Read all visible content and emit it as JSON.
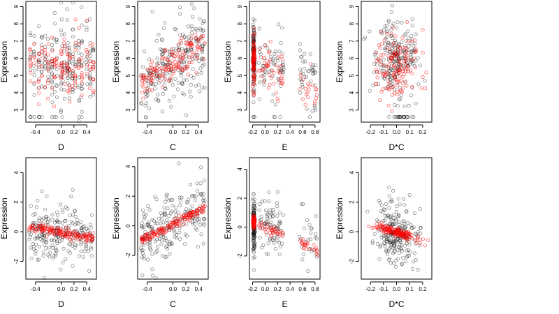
{
  "colors": {
    "black_series": "#000000",
    "red_series": "#ff0000"
  },
  "chart_data": [
    {
      "id": "p11",
      "type": "scatter",
      "xlabel": "D",
      "ylabel": "Expression",
      "xlim": [
        -0.55,
        0.55
      ],
      "ylim": [
        2.3,
        9.3
      ],
      "xticks": [
        -0.4,
        0.0,
        0.2,
        0.4
      ],
      "yticks": [
        3,
        4,
        5,
        6,
        7,
        8,
        9
      ],
      "series": [
        {
          "color": "black",
          "opacity": 0.45,
          "x_values": [
            -0.48,
            -0.42,
            -0.35,
            -0.3,
            -0.25,
            -0.2,
            -0.14,
            -0.1,
            -0.07,
            0.0,
            0.02,
            0.05,
            0.1,
            0.13,
            0.18,
            0.22,
            0.28,
            0.32,
            0.4,
            0.45,
            0.5
          ],
          "y_range": [
            2.6,
            8.4
          ],
          "count": 230
        },
        {
          "color": "red",
          "opacity": 0.6,
          "x_values": [
            -0.48,
            -0.42,
            -0.35,
            -0.3,
            -0.25,
            -0.2,
            -0.14,
            -0.1,
            -0.07,
            0.0,
            0.02,
            0.05,
            0.1,
            0.13,
            0.18,
            0.22,
            0.28,
            0.32,
            0.4,
            0.45,
            0.5
          ],
          "y_range": [
            2.8,
            7.5
          ],
          "count": 150
        }
      ]
    },
    {
      "id": "p12",
      "type": "scatter",
      "xlabel": "C",
      "ylabel": "Expression",
      "xlim": [
        -0.55,
        0.55
      ],
      "ylim": [
        2.3,
        9.3
      ],
      "xticks": [
        -0.4,
        0.0,
        0.2,
        0.4
      ],
      "yticks": [
        3,
        4,
        5,
        6,
        7,
        8,
        9
      ],
      "series": [
        {
          "color": "black",
          "opacity": 0.45,
          "trend": [
            [
              -0.5,
              4.5
            ],
            [
              0.5,
              6.8
            ]
          ],
          "spread": 1.2,
          "count": 230
        },
        {
          "color": "red",
          "opacity": 0.6,
          "trend": [
            [
              -0.5,
              4.5
            ],
            [
              0.5,
              6.8
            ]
          ],
          "spread": 0.5,
          "count": 150
        }
      ]
    },
    {
      "id": "p13",
      "type": "scatter",
      "xlabel": "E",
      "ylabel": "Expression",
      "xlim": [
        -0.25,
        0.88
      ],
      "ylim": [
        2.3,
        9.3
      ],
      "xticks": [
        -0.2,
        0.0,
        0.2,
        0.4,
        0.6,
        0.8
      ],
      "yticks": [
        3,
        4,
        5,
        6,
        7,
        8,
        9
      ],
      "series": [
        {
          "color": "black",
          "opacity": 0.45,
          "count": 230
        },
        {
          "color": "red",
          "opacity": 0.6,
          "count": 150
        }
      ]
    },
    {
      "id": "p14",
      "type": "scatter",
      "xlabel": "D*C",
      "ylabel": "Expression",
      "xlim": [
        -0.27,
        0.27
      ],
      "ylim": [
        2.3,
        9.3
      ],
      "xticks": [
        -0.2,
        -0.1,
        0.0,
        0.1,
        0.2
      ],
      "yticks": [
        3,
        4,
        5,
        6,
        7,
        8,
        9
      ],
      "series": [
        {
          "color": "black",
          "opacity": 0.45,
          "count": 230
        },
        {
          "color": "red",
          "opacity": 0.6,
          "count": 150
        }
      ]
    },
    {
      "id": "p21",
      "type": "scatter",
      "xlabel": "D",
      "ylabel": "Expression",
      "xlim": [
        -0.55,
        0.55
      ],
      "ylim": [
        -3.2,
        5.0
      ],
      "xticks": [
        -0.4,
        0.0,
        0.2,
        0.4
      ],
      "yticks": [
        -2,
        0,
        2,
        4
      ],
      "series": [
        {
          "color": "black",
          "opacity": 0.45,
          "count": 230
        },
        {
          "color": "red",
          "opacity": 0.6,
          "trend": [
            [
              -0.5,
              0.3
            ],
            [
              0.5,
              -0.4
            ]
          ],
          "spread": 0.15,
          "count": 150
        }
      ]
    },
    {
      "id": "p22",
      "type": "scatter",
      "xlabel": "C",
      "ylabel": "Expression",
      "xlim": [
        -0.55,
        0.55
      ],
      "ylim": [
        -3.6,
        4.6
      ],
      "xticks": [
        -0.4,
        0.0,
        0.2,
        0.4
      ],
      "yticks": [
        -2,
        0,
        2,
        4
      ],
      "series": [
        {
          "color": "black",
          "opacity": 0.45,
          "trend": [
            [
              -0.5,
              -1.0
            ],
            [
              0.5,
              1.2
            ]
          ],
          "spread": 1.1,
          "count": 230
        },
        {
          "color": "red",
          "opacity": 0.6,
          "trend": [
            [
              -0.5,
              -1.0
            ],
            [
              0.5,
              1.2
            ]
          ],
          "spread": 0.15,
          "count": 150
        }
      ]
    },
    {
      "id": "p23",
      "type": "scatter",
      "xlabel": "E",
      "ylabel": "Expression",
      "xlim": [
        -0.25,
        0.88
      ],
      "ylim": [
        -3.6,
        4.8
      ],
      "xticks": [
        -0.2,
        0.0,
        0.2,
        0.4,
        0.6,
        0.8
      ],
      "yticks": [
        -2,
        0,
        2,
        4
      ],
      "series": [
        {
          "color": "black",
          "opacity": 0.45,
          "count": 230
        },
        {
          "color": "red",
          "opacity": 0.6,
          "trend": [
            [
              -0.2,
              0.4
            ],
            [
              0.85,
              -1.6
            ]
          ],
          "spread": 0.2,
          "count": 150
        }
      ]
    },
    {
      "id": "p24",
      "type": "scatter",
      "xlabel": "D*C",
      "ylabel": "Expression",
      "xlim": [
        -0.27,
        0.27
      ],
      "ylim": [
        -3.2,
        5.0
      ],
      "xticks": [
        -0.2,
        -0.1,
        0.0,
        0.1,
        0.2
      ],
      "yticks": [
        -2,
        0,
        2,
        4
      ],
      "series": [
        {
          "color": "black",
          "opacity": 0.45,
          "count": 230
        },
        {
          "color": "red",
          "opacity": 0.6,
          "trend": [
            [
              -0.25,
              0.6
            ],
            [
              0.25,
              -0.7
            ]
          ],
          "spread": 0.15,
          "count": 150
        }
      ]
    }
  ]
}
